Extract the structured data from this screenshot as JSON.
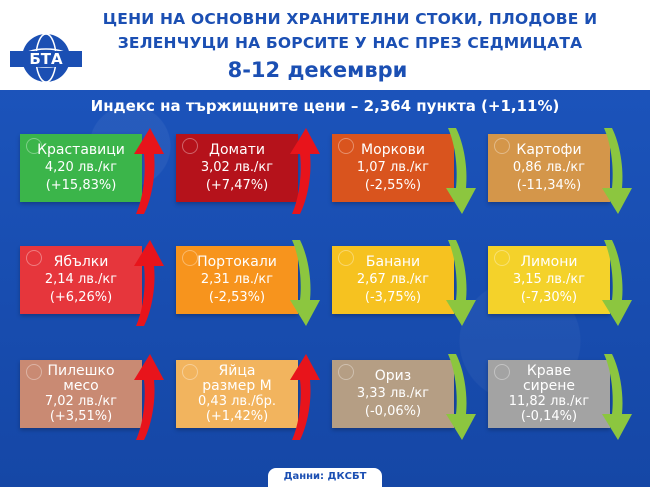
{
  "header": {
    "title_line1": "ЦЕНИ НА ОСНОВНИ ХРАНИТЕЛНИ СТОКИ, ПЛОДОВЕ И",
    "title_line2": "ЗЕЛЕНЧУЦИ НА БОРСИТЕ У НАС ПРЕЗ СЕДМИЦАТА",
    "dates": "8-12 декември",
    "logo_text": "БТА"
  },
  "index_line": "Индекс на тържищните цени – 2,364 пункта (+1,11%)",
  "source": "Данни: ДКСБТ",
  "colors": {
    "background": "#1b4fb3",
    "up_arrow": "#e8141b",
    "down_arrow": "#8cc63f"
  },
  "items": [
    {
      "name": "Краставици",
      "price": "4,20 лв./кг",
      "change": "(+15,83%)",
      "trend": "up",
      "color": "#3bb54a",
      "icon": "cucumber-icon"
    },
    {
      "name": "Домати",
      "price": "3,02 лв./кг",
      "change": "(+7,47%)",
      "trend": "up",
      "color": "#b5121b",
      "icon": "tomato-icon"
    },
    {
      "name": "Моркови",
      "price": "1,07 лв./кг",
      "change": "(-2,55%)",
      "trend": "down",
      "color": "#d9541e",
      "icon": "carrot-icon"
    },
    {
      "name": "Картофи",
      "price": "0,86 лв./кг",
      "change": "(-11,34%)",
      "trend": "down",
      "color": "#d4964a",
      "icon": "potato-icon"
    },
    {
      "name": "Ябълки",
      "price": "2,14 лв./кг",
      "change": "(+6,26%)",
      "trend": "up",
      "color": "#e6363c",
      "icon": "apple-icon"
    },
    {
      "name": "Портокали",
      "price": "2,31 лв./кг",
      "change": "(-2,53%)",
      "trend": "down",
      "color": "#f7941d",
      "icon": "orange-icon"
    },
    {
      "name": "Банани",
      "price": "2,67 лв./кг",
      "change": "(-3,75%)",
      "trend": "down",
      "color": "#f6c220",
      "icon": "banana-icon"
    },
    {
      "name": "Лимони",
      "price": "3,15 лв./кг",
      "change": "(-7,30%)",
      "trend": "down",
      "color": "#f4d22a",
      "icon": "lemon-icon"
    },
    {
      "name": "Пилешко\nмесо",
      "price": "7,02 лв./кг",
      "change": "(+3,51%)",
      "trend": "up",
      "color": "#c98a73",
      "icon": "chicken-icon"
    },
    {
      "name": "Яйца\nразмер М",
      "price": "0,43 лв./бр.",
      "change": "(+1,42%)",
      "trend": "up",
      "color": "#f2b45e",
      "icon": "egg-icon"
    },
    {
      "name": "Ориз",
      "price": "3,33 лв./кг",
      "change": "(-0,06%)",
      "trend": "down",
      "color": "#b59e84",
      "icon": "rice-icon"
    },
    {
      "name": "Краве\nсирене",
      "price": "11,82 лв./кг",
      "change": "(-0,14%)",
      "trend": "down",
      "color": "#a3a3a3",
      "icon": "cheese-icon"
    }
  ]
}
